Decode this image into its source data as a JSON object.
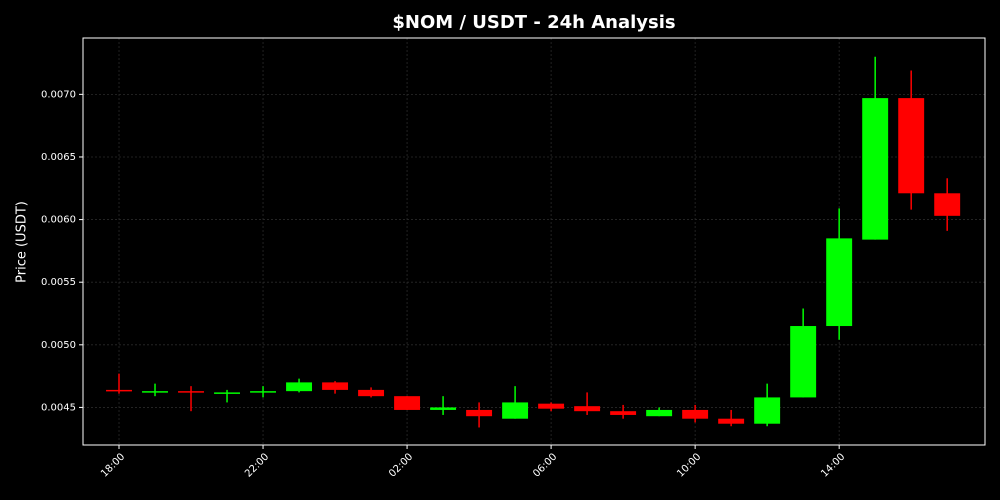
{
  "chart_data": {
    "type": "candlestick",
    "title": "$NOM / USDT - 24h Analysis",
    "y_label": "Price (USDT)",
    "x": [
      18,
      19,
      20,
      21,
      22,
      23,
      24,
      25,
      26,
      27,
      28,
      29,
      30,
      31,
      32,
      33,
      34,
      35,
      36,
      37,
      38,
      39,
      40,
      41
    ],
    "open": [
      0.00464,
      0.00462,
      0.00463,
      0.00461,
      0.00462,
      0.00463,
      0.0047,
      0.00464,
      0.00459,
      0.00448,
      0.00448,
      0.00441,
      0.00453,
      0.00451,
      0.00447,
      0.00443,
      0.00448,
      0.00441,
      0.00437,
      0.00458,
      0.00515,
      0.00584,
      0.00697,
      0.00621
    ],
    "high": [
      0.00477,
      0.00469,
      0.00467,
      0.00464,
      0.00467,
      0.00473,
      0.00471,
      0.00466,
      0.00459,
      0.00459,
      0.00454,
      0.00467,
      0.00454,
      0.00462,
      0.00452,
      0.0045,
      0.00452,
      0.00448,
      0.00469,
      0.00529,
      0.00609,
      0.0073,
      0.00719,
      0.00633
    ],
    "low": [
      0.00461,
      0.00459,
      0.00447,
      0.00454,
      0.00458,
      0.00462,
      0.00461,
      0.00458,
      0.00448,
      0.00444,
      0.00434,
      0.00441,
      0.00447,
      0.00444,
      0.00441,
      0.00443,
      0.00438,
      0.00435,
      0.00435,
      0.00458,
      0.00504,
      0.00584,
      0.00608,
      0.00591
    ],
    "close": [
      0.00463,
      0.00463,
      0.00462,
      0.00462,
      0.00463,
      0.0047,
      0.00464,
      0.00459,
      0.00448,
      0.0045,
      0.00443,
      0.00454,
      0.00449,
      0.00447,
      0.00444,
      0.00448,
      0.00441,
      0.00437,
      0.00458,
      0.00515,
      0.00585,
      0.00697,
      0.00621,
      0.00603
    ],
    "up_color": "#00ff00",
    "down_color": "#ff0000",
    "xlim": [
      17,
      42.05
    ],
    "xticks": [
      {
        "value": 18,
        "label": "18:00"
      },
      {
        "value": 22,
        "label": "22:00"
      },
      {
        "value": 26,
        "label": "02:00"
      },
      {
        "value": 30,
        "label": "06:00"
      },
      {
        "value": 34,
        "label": "10:00"
      },
      {
        "value": 38,
        "label": "14:00"
      }
    ],
    "ylim": [
      0.0042,
      0.00745
    ],
    "yticks": [
      {
        "value": 0.0045,
        "label": "0.0045"
      },
      {
        "value": 0.005,
        "label": "0.0050"
      },
      {
        "value": 0.0055,
        "label": "0.0055"
      },
      {
        "value": 0.006,
        "label": "0.0060"
      },
      {
        "value": 0.0065,
        "label": "0.0065"
      },
      {
        "value": 0.007,
        "label": "0.0070"
      }
    ],
    "grid": true
  }
}
